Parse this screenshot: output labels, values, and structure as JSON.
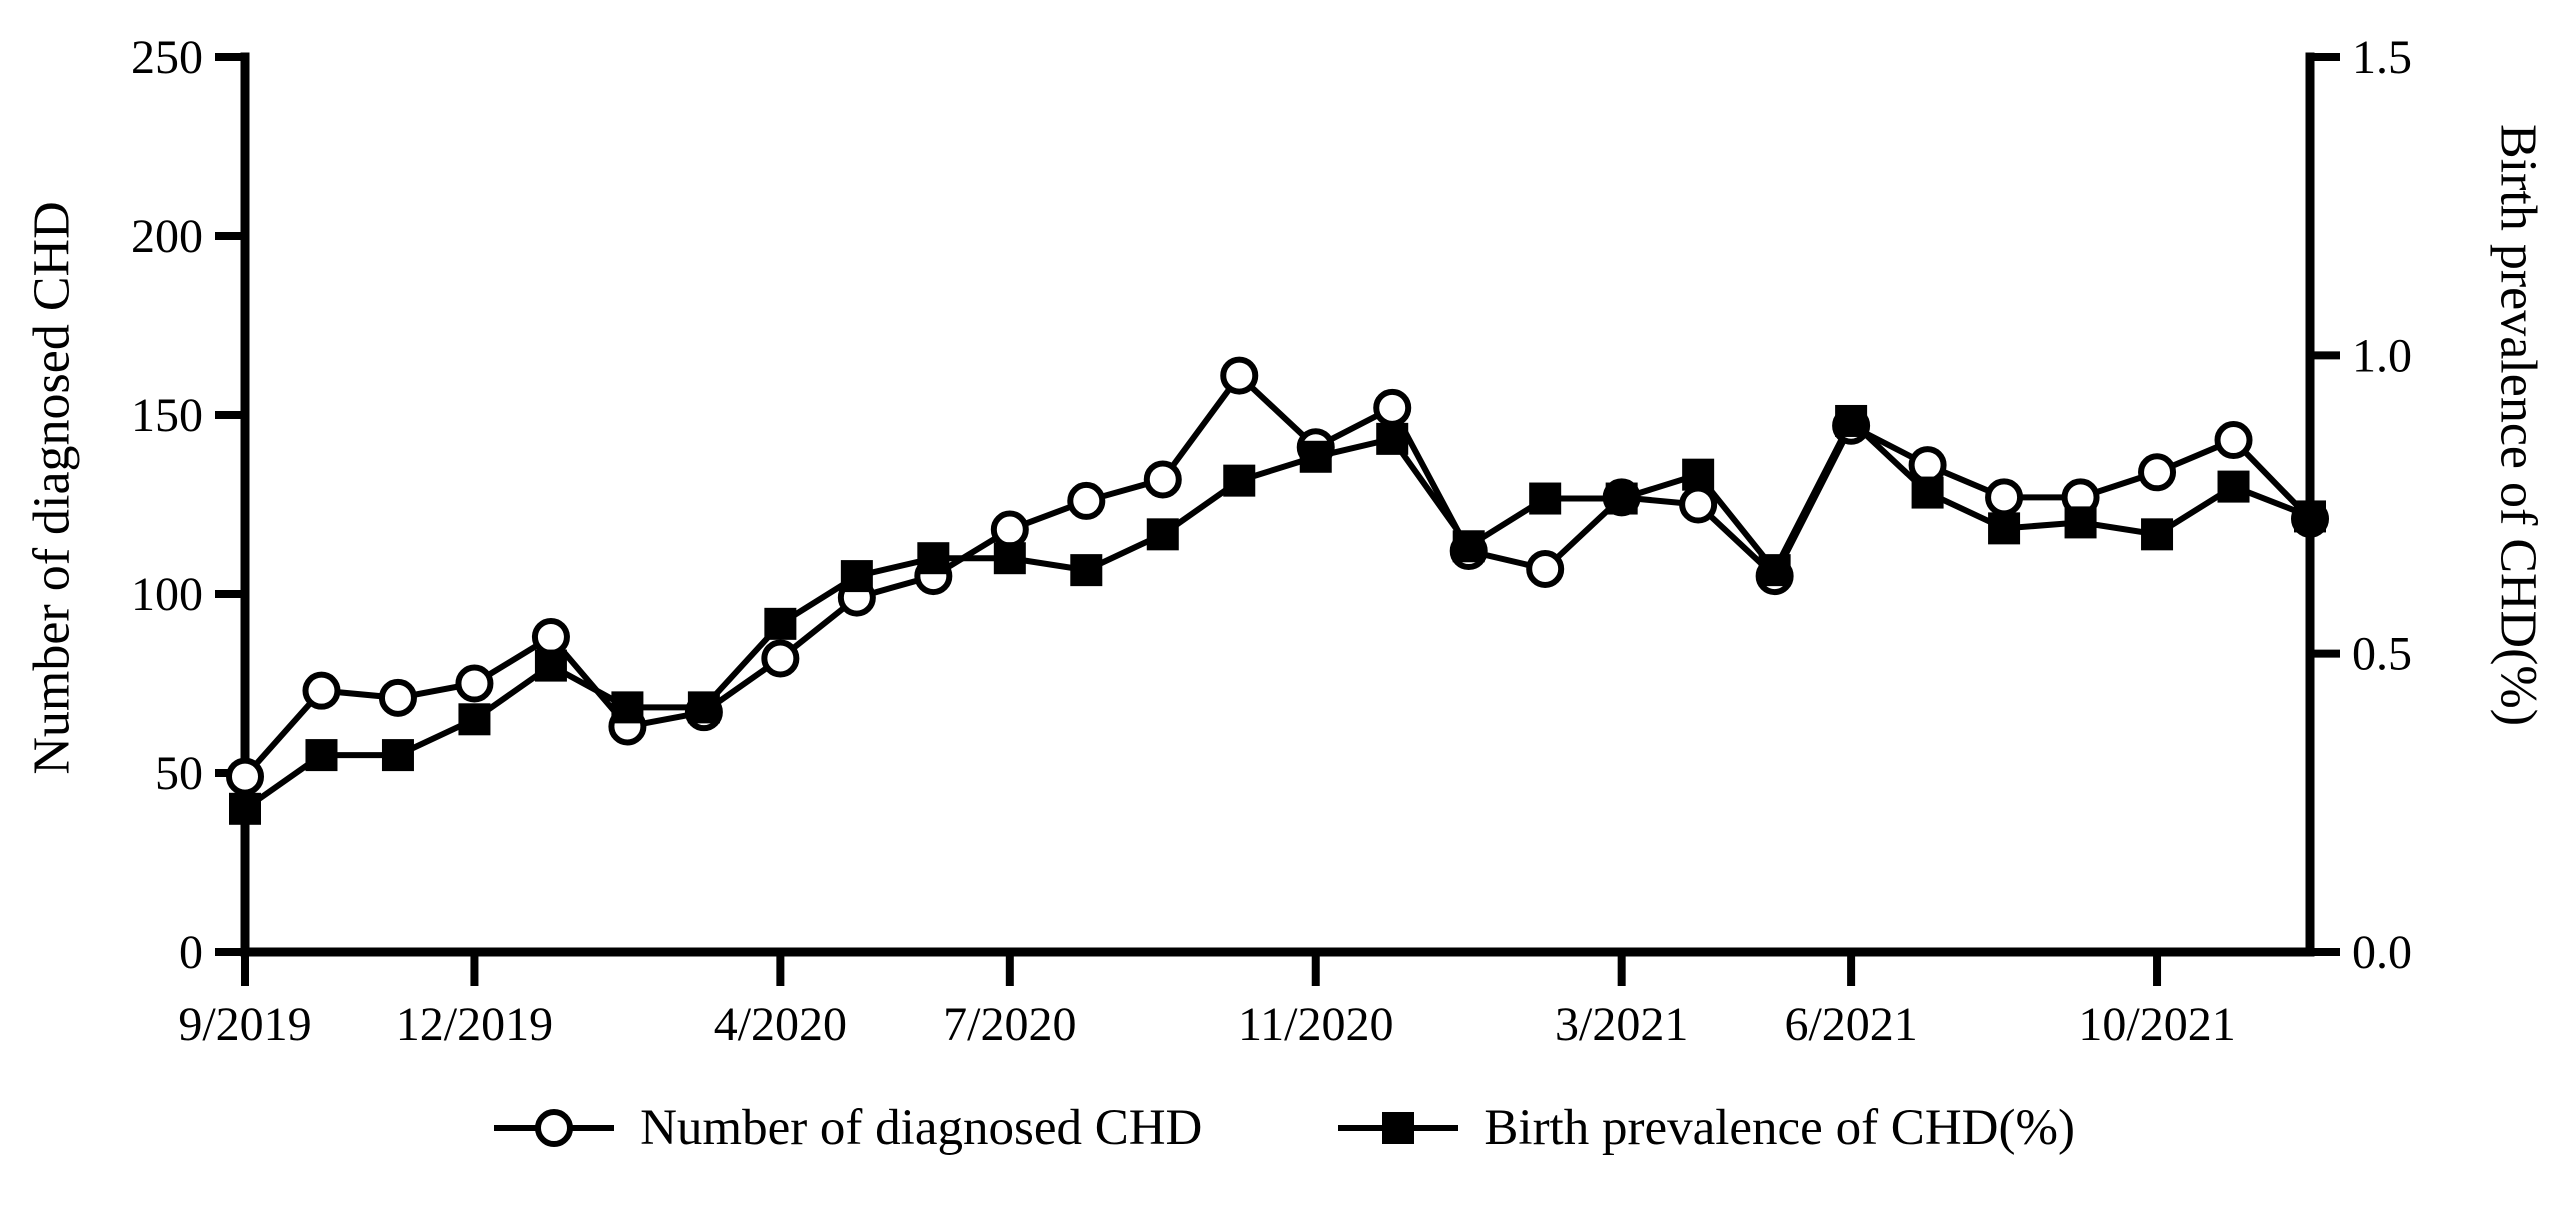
{
  "colors": {
    "foreground": "#000000",
    "background": "#ffffff"
  },
  "chart_data": {
    "type": "line",
    "title": "",
    "months": [
      "9/2019",
      "10/2019",
      "11/2019",
      "12/2019",
      "1/2020",
      "2/2020",
      "3/2020",
      "4/2020",
      "5/2020",
      "6/2020",
      "7/2020",
      "8/2020",
      "9/2020",
      "10/2020",
      "11/2020",
      "12/2020",
      "1/2021",
      "2/2021",
      "3/2021",
      "4/2021",
      "5/2021",
      "6/2021",
      "7/2021",
      "8/2021",
      "9/2021",
      "10/2021",
      "11/2021",
      "12/2021"
    ],
    "x_ticks": [
      {
        "index": 0,
        "label": "9/2019"
      },
      {
        "index": 3,
        "label": "12/2019"
      },
      {
        "index": 7,
        "label": "4/2020"
      },
      {
        "index": 10,
        "label": "7/2020"
      },
      {
        "index": 14,
        "label": "11/2020"
      },
      {
        "index": 18,
        "label": "3/2021"
      },
      {
        "index": 21,
        "label": "6/2021"
      },
      {
        "index": 25,
        "label": "10/2021"
      }
    ],
    "left_axis": {
      "label": "Number of diagnosed CHD",
      "min": 0,
      "max": 250,
      "ticks": [
        0,
        50,
        100,
        150,
        200,
        250
      ],
      "tick_labels": [
        "0",
        "50",
        "100",
        "150",
        "200",
        "250"
      ]
    },
    "right_axis": {
      "label": "Birth prevalence of CHD(%)",
      "min": 0,
      "max": 1.5,
      "ticks": [
        0.0,
        0.5,
        1.0,
        1.5
      ],
      "tick_labels": [
        "0.0",
        "0.5",
        "1.0",
        "1.5"
      ]
    },
    "series": [
      {
        "name": "Number of diagnosed CHD",
        "axis": "left",
        "marker": "open-circle",
        "values": [
          49,
          73,
          71,
          75,
          88,
          63,
          67,
          82,
          99,
          105,
          118,
          126,
          132,
          161,
          141,
          152,
          112,
          107,
          127,
          125,
          105,
          147,
          136,
          127,
          127,
          134,
          143,
          121
        ]
      },
      {
        "name": "Birth prevalence of CHD(%)",
        "axis": "right",
        "marker": "filled-square",
        "values": [
          0.24,
          0.33,
          0.33,
          0.39,
          0.48,
          0.41,
          0.41,
          0.55,
          0.63,
          0.66,
          0.66,
          0.64,
          0.7,
          0.79,
          0.83,
          0.86,
          0.68,
          0.76,
          0.76,
          0.8,
          0.64,
          0.89,
          0.77,
          0.71,
          0.72,
          0.7,
          0.78,
          0.73
        ]
      }
    ],
    "legend_position": "bottom",
    "grid": false
  }
}
